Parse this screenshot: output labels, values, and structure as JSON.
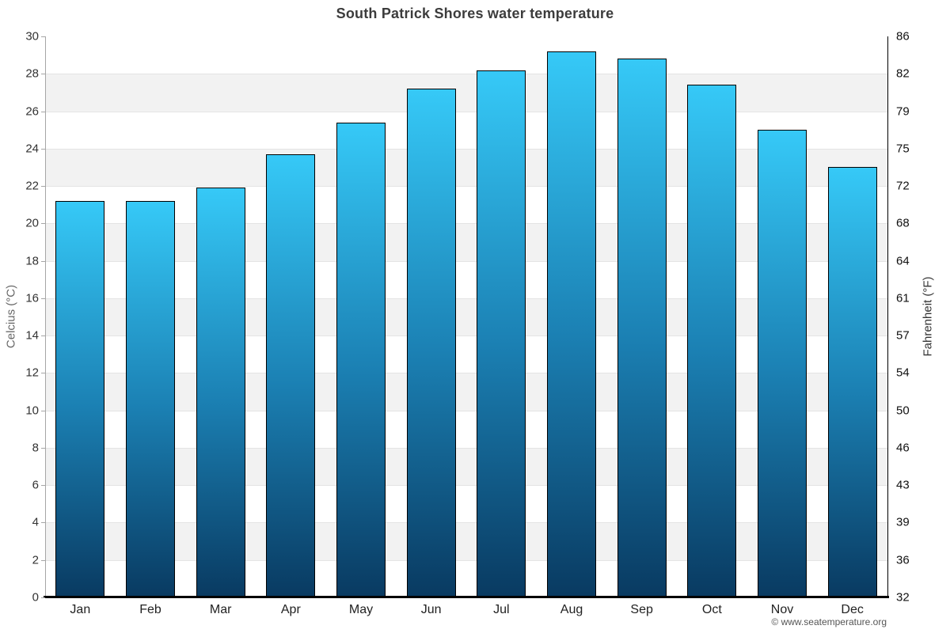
{
  "footer": {
    "copyright": "© www.seatemperature.org"
  },
  "chart_data": {
    "type": "bar",
    "title": "South Patrick Shores water temperature",
    "categories": [
      "Jan",
      "Feb",
      "Mar",
      "Apr",
      "May",
      "Jun",
      "Jul",
      "Aug",
      "Sep",
      "Oct",
      "Nov",
      "Dec"
    ],
    "values": [
      21.2,
      21.2,
      21.9,
      23.7,
      25.4,
      27.2,
      28.2,
      29.2,
      28.8,
      27.4,
      25.0,
      23.0
    ],
    "series_name": "Water temperature (°C)",
    "xlabel": "",
    "ylabel_left": "Celcius (°C)",
    "ylabel_right": "Fahrenheit (°F)",
    "ylim": [
      0,
      30
    ],
    "yticks_left": [
      30,
      28,
      26,
      24,
      22,
      20,
      18,
      16,
      14,
      12,
      10,
      8,
      6,
      4,
      2,
      0
    ],
    "yticks_right": [
      86,
      82,
      79,
      75,
      72,
      68,
      64,
      61,
      57,
      54,
      50,
      46,
      43,
      39,
      36,
      32
    ],
    "grid": "horizontal gridlines every 2°C with alternating white/gray bands",
    "legend": "none",
    "colors": {
      "bar_gradient_top": "#36c9f7",
      "bar_gradient_mid": "#1b80b3",
      "bar_gradient_bottom": "#093a61",
      "bar_border": "#000000",
      "band_gray": "#f2f2f2",
      "gridline": "#e4e4e4",
      "axis_left": "#a6a6a6",
      "axis_right": "#000000",
      "baseline": "#000000",
      "title_text": "#3c3c3c"
    }
  }
}
